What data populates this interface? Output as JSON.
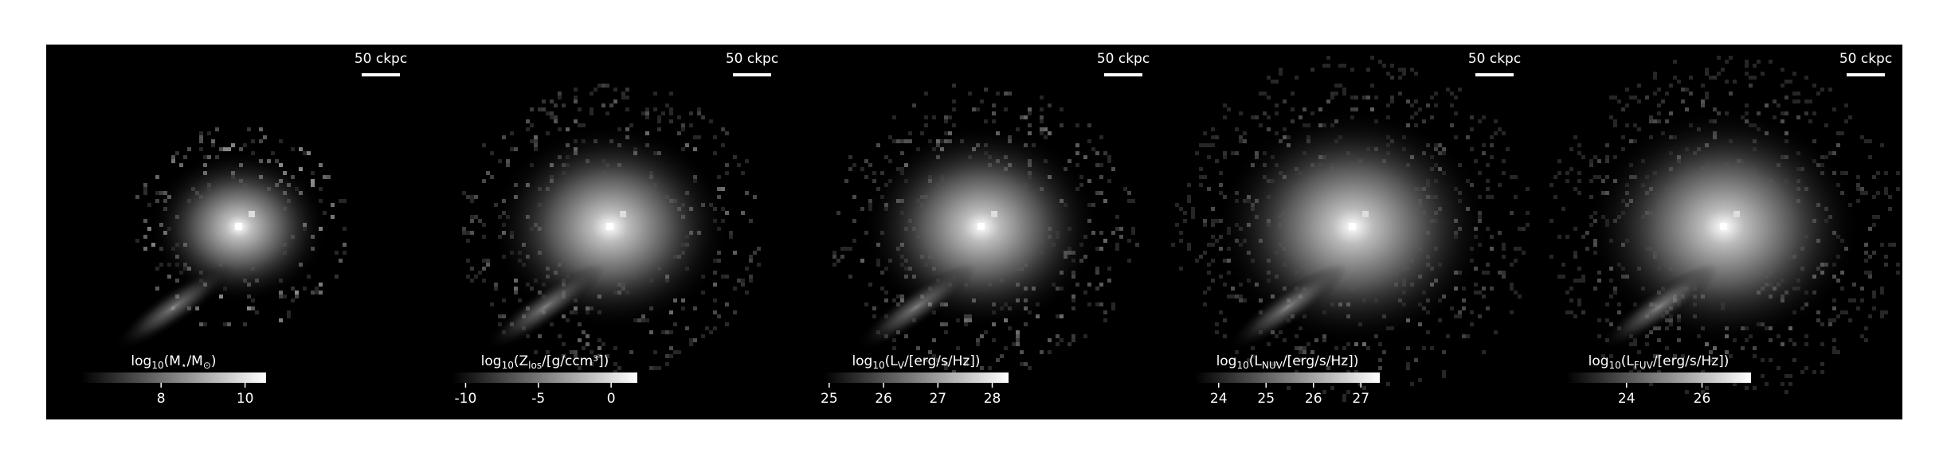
{
  "chart_data": [
    {
      "type": "image",
      "scale_label": "50 ckpc",
      "colorbar_label": [
        "log",
        "10",
        "(M",
        "⋆",
        "/M",
        "⊙",
        ")"
      ],
      "clim": [
        6.1,
        10.5
      ],
      "cticks": [
        8,
        10
      ],
      "spread": 0.55
    },
    {
      "type": "image",
      "scale_label": "50 ckpc",
      "colorbar_label": [
        "log",
        "10",
        "(Z",
        "los",
        "/[g/ccm³])"
      ],
      "clim": [
        -10.9,
        1.8
      ],
      "cticks": [
        -10,
        -5,
        0
      ],
      "spread": 0.8
    },
    {
      "type": "image",
      "scale_label": "50 ckpc",
      "colorbar_label": [
        "log",
        "10",
        "(L",
        "V",
        "/[erg/s/Hz])"
      ],
      "clim": [
        24.9,
        28.3
      ],
      "cticks": [
        25,
        26,
        27,
        28
      ],
      "spread": 0.8
    },
    {
      "type": "image",
      "scale_label": "50 ckpc",
      "colorbar_label": [
        "log",
        "10",
        "(L",
        "NUV",
        "/[erg/s/Hz])"
      ],
      "clim": [
        23.5,
        27.4
      ],
      "cticks": [
        24,
        25,
        26,
        27
      ],
      "spread": 0.95
    },
    {
      "type": "image",
      "scale_label": "50 ckpc",
      "colorbar_label": [
        "log",
        "10",
        "(L",
        "FUV",
        "/[erg/s/Hz])"
      ],
      "clim": [
        22.4,
        27.3
      ],
      "cticks": [
        24,
        26
      ],
      "spread": 0.95
    }
  ]
}
